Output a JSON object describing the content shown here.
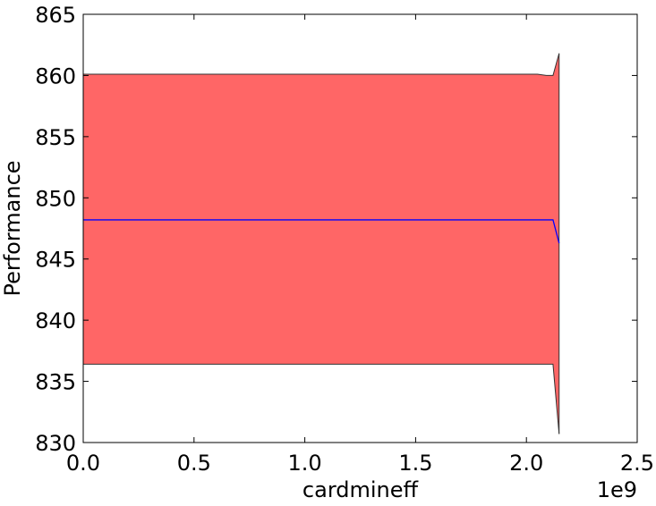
{
  "chart_data": {
    "type": "area",
    "xlabel": "cardmineff",
    "ylabel": "Performance",
    "x_scale_label": "1e9",
    "x_scale_factor": 1000000000,
    "xlim": [
      0,
      2500000000
    ],
    "ylim": [
      830,
      865
    ],
    "xticks": [
      0,
      500000000,
      1000000000,
      1500000000,
      2000000000,
      2500000000
    ],
    "xtick_labels": [
      "0.0",
      "0.5",
      "1.0",
      "1.5",
      "2.0",
      "2.5"
    ],
    "yticks": [
      830,
      835,
      840,
      845,
      850,
      855,
      860,
      865
    ],
    "ytick_labels": [
      "830",
      "835",
      "840",
      "845",
      "850",
      "855",
      "860",
      "865"
    ],
    "grid": false,
    "colors": {
      "band_fill": "#ff6666",
      "band_edge": "#333333",
      "mean_line": "#0000ff",
      "axes": "#000000"
    },
    "series": [
      {
        "role": "upper",
        "x": [
          0,
          20000000,
          2050000000,
          2090000000,
          2120000000,
          2147483647
        ],
        "values": [
          860.1,
          860.1,
          860.1,
          860.0,
          860.0,
          861.8
        ]
      },
      {
        "role": "mean",
        "x": [
          0,
          20000000,
          2050000000,
          2090000000,
          2120000000,
          2147483647
        ],
        "values": [
          848.2,
          848.2,
          848.2,
          848.2,
          848.2,
          846.3
        ]
      },
      {
        "role": "lower",
        "x": [
          0,
          20000000,
          2050000000,
          2090000000,
          2120000000,
          2147483647
        ],
        "values": [
          836.4,
          836.4,
          836.4,
          836.4,
          836.4,
          830.7
        ]
      }
    ]
  }
}
